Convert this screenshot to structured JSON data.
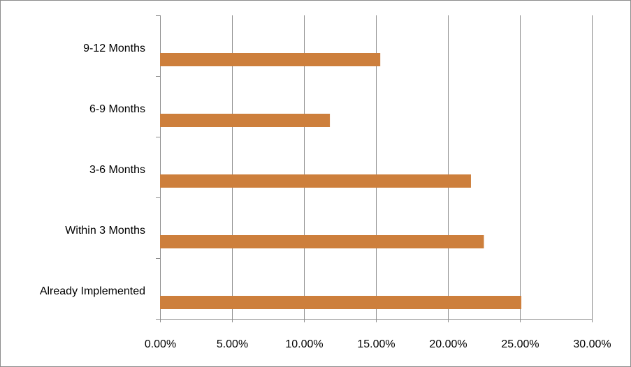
{
  "chart_data": {
    "type": "bar",
    "orientation": "horizontal",
    "title": "",
    "xlabel": "",
    "ylabel": "",
    "categories": [
      "Already Implemented",
      "Within 3 Months",
      "3-6 Months",
      "6-9  Months",
      "9-12 Months"
    ],
    "values": [
      0.251,
      0.225,
      0.216,
      0.118,
      0.153
    ],
    "xlim": [
      0,
      0.3
    ],
    "x_ticks": [
      0,
      0.05,
      0.1,
      0.15,
      0.2,
      0.25,
      0.3
    ],
    "x_tick_labels": [
      "0.00%",
      "5.00%",
      "10.00%",
      "15.00%",
      "20.00%",
      "25.00%",
      "30.00%"
    ],
    "grid": "vertical",
    "legend": "none",
    "bar_color": "#CD7F3C",
    "grid_color": "#8C8C8C"
  }
}
